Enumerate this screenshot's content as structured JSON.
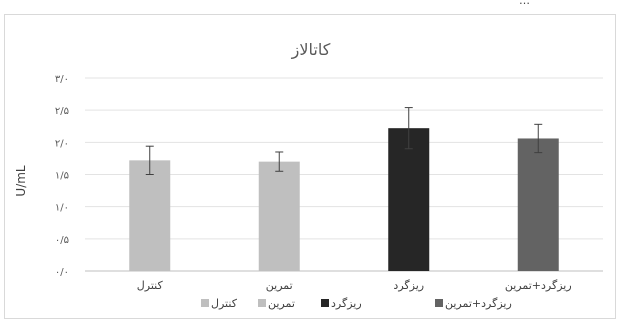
{
  "header_strip": "…",
  "chart_data": {
    "type": "bar",
    "title": "کاتالاز",
    "ylabel": "U/mL",
    "xlabel": "",
    "categories": [
      "کنترل",
      "تمرین",
      "ریزگرد",
      "ریزگرد+تمرین"
    ],
    "values": [
      1.72,
      1.7,
      2.22,
      2.06
    ],
    "error": [
      0.22,
      0.15,
      0.32,
      0.22
    ],
    "bar_colors": [
      "#bfbfbf",
      "#bfbfbf",
      "#262626",
      "#636363"
    ],
    "ylim": [
      0,
      3.0
    ],
    "yticks": [
      0,
      0.5,
      1.0,
      1.5,
      2.0,
      2.5,
      3.0
    ],
    "ytick_labels": [
      "۰/۰",
      "۰/۵",
      "۱/۰",
      "۱/۵",
      "۲/۰",
      "۲/۵",
      "۳/۰"
    ],
    "grid": true,
    "legend": {
      "placement": "bottom",
      "entries": [
        "کنترل",
        "تمرین",
        "ریزگرد",
        "ریزگرد+تمرین"
      ]
    }
  }
}
